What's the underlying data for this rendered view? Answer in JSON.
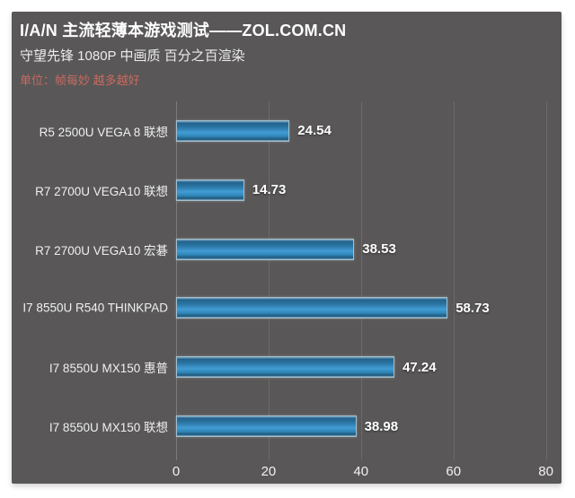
{
  "header": {
    "title": "I/A/N 主流轻薄本游戏测试——ZOL.COM.CN",
    "subtitle": "守望先锋 1080P 中画质 百分之百渲染",
    "unit_note": "单位：帧每妙 越多越好"
  },
  "chart_data": {
    "type": "bar",
    "orientation": "horizontal",
    "title": "I/A/N 主流轻薄本游戏测试——ZOL.COM.CN",
    "subtitle": "守望先锋 1080P 中画质 百分之百渲染",
    "unit_note": "单位：帧每妙 越多越好",
    "categories": [
      "R5 2500U VEGA 8 联想",
      "R7 2700U VEGA10 联想",
      "R7 2700U VEGA10 宏碁",
      "I7 8550U R540 THINKPAD",
      "I7 8550U MX150 惠普",
      "I7 8550U MX150 联想"
    ],
    "values": [
      24.54,
      14.73,
      38.53,
      58.73,
      47.24,
      38.98
    ],
    "value_labels": [
      "24.54",
      "14.73",
      "38.53",
      "58.73",
      "47.24",
      "38.98"
    ],
    "xticks": [
      0,
      20,
      40,
      60,
      80
    ],
    "xlim": [
      0,
      82.4
    ],
    "grid": true,
    "legend": "none",
    "colors": {
      "panel_bg": "#595757",
      "bar_fill_mid": "#429cd4",
      "bar_fill_dark": "#23628c",
      "bar_border": "#a3c0cf",
      "gridline": "#6b6969",
      "note_red": "#c96a5f",
      "text": "#f0f0f0"
    }
  }
}
